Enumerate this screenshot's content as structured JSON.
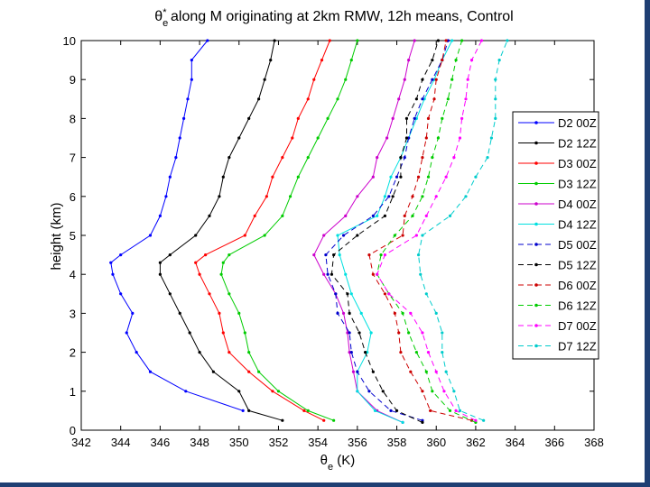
{
  "chart_data": {
    "type": "line",
    "title_prefix": "θ",
    "title_sub": "e",
    "title_sup": "*",
    "title_rest": " along M originating at 2km RMW, 12h means, Control",
    "xlabel_main": "θ",
    "xlabel_sub": "e",
    "xlabel_unit": " (K)",
    "ylabel": "height (km)",
    "xlim": [
      342,
      368
    ],
    "ylim": [
      0,
      10
    ],
    "xticks": [
      342,
      344,
      346,
      348,
      350,
      352,
      354,
      356,
      358,
      360,
      362,
      364,
      366,
      368
    ],
    "yticks": [
      0,
      1,
      2,
      3,
      4,
      5,
      6,
      7,
      8,
      9,
      10
    ],
    "grid": false,
    "legend_position": "right",
    "series": [
      {
        "name": "D2 00Z",
        "color": "#0000ff",
        "dash": false,
        "points": [
          [
            350.2,
            0.5
          ],
          [
            347.3,
            1
          ],
          [
            345.5,
            1.5
          ],
          [
            344.8,
            2
          ],
          [
            344.3,
            2.5
          ],
          [
            344.6,
            3
          ],
          [
            344.0,
            3.5
          ],
          [
            343.6,
            4
          ],
          [
            343.5,
            4.3
          ],
          [
            344.0,
            4.5
          ],
          [
            345.5,
            5
          ],
          [
            346.0,
            5.5
          ],
          [
            346.3,
            6
          ],
          [
            346.5,
            6.5
          ],
          [
            346.8,
            7
          ],
          [
            347.0,
            7.5
          ],
          [
            347.2,
            8
          ],
          [
            347.4,
            8.5
          ],
          [
            347.6,
            9
          ],
          [
            347.6,
            9.5
          ],
          [
            348.4,
            10
          ]
        ]
      },
      {
        "name": "D2 12Z",
        "color": "#000000",
        "dash": false,
        "points": [
          [
            352.2,
            0.25
          ],
          [
            350.5,
            0.5
          ],
          [
            350.0,
            1
          ],
          [
            348.7,
            1.5
          ],
          [
            348.0,
            2
          ],
          [
            347.5,
            2.5
          ],
          [
            347.0,
            3
          ],
          [
            346.5,
            3.5
          ],
          [
            346.0,
            4
          ],
          [
            346.0,
            4.3
          ],
          [
            346.5,
            4.5
          ],
          [
            347.8,
            5
          ],
          [
            348.5,
            5.5
          ],
          [
            349.0,
            6
          ],
          [
            349.2,
            6.5
          ],
          [
            349.5,
            7
          ],
          [
            350.0,
            7.5
          ],
          [
            350.5,
            8
          ],
          [
            351.0,
            8.5
          ],
          [
            351.3,
            9
          ],
          [
            351.6,
            9.5
          ],
          [
            351.8,
            10
          ]
        ]
      },
      {
        "name": "D3 00Z",
        "color": "#ff0000",
        "dash": false,
        "points": [
          [
            354.3,
            0.25
          ],
          [
            353.3,
            0.5
          ],
          [
            351.7,
            1
          ],
          [
            350.5,
            1.5
          ],
          [
            349.5,
            2
          ],
          [
            349.2,
            2.5
          ],
          [
            349.0,
            3
          ],
          [
            348.5,
            3.5
          ],
          [
            348.0,
            4
          ],
          [
            347.8,
            4.3
          ],
          [
            348.3,
            4.5
          ],
          [
            350.3,
            5
          ],
          [
            350.8,
            5.5
          ],
          [
            351.4,
            6
          ],
          [
            351.7,
            6.5
          ],
          [
            352.2,
            7
          ],
          [
            352.7,
            7.5
          ],
          [
            353.0,
            8
          ],
          [
            353.5,
            8.5
          ],
          [
            353.8,
            9
          ],
          [
            354.2,
            9.5
          ],
          [
            354.6,
            10
          ]
        ]
      },
      {
        "name": "D3 12Z",
        "color": "#00cc00",
        "dash": false,
        "points": [
          [
            354.8,
            0.25
          ],
          [
            353.5,
            0.5
          ],
          [
            352.0,
            1
          ],
          [
            351.0,
            1.5
          ],
          [
            350.5,
            2
          ],
          [
            350.3,
            2.5
          ],
          [
            350.0,
            3
          ],
          [
            349.5,
            3.5
          ],
          [
            349.1,
            4
          ],
          [
            349.2,
            4.3
          ],
          [
            349.5,
            4.5
          ],
          [
            351.3,
            5
          ],
          [
            352.2,
            5.5
          ],
          [
            352.6,
            6
          ],
          [
            353.0,
            6.5
          ],
          [
            353.5,
            7
          ],
          [
            354.0,
            7.5
          ],
          [
            354.5,
            8
          ],
          [
            355.0,
            8.5
          ],
          [
            355.4,
            9
          ],
          [
            355.7,
            9.5
          ],
          [
            356.0,
            10
          ]
        ]
      },
      {
        "name": "D4 00Z",
        "color": "#cc00cc",
        "dash": false,
        "points": [
          [
            358.3,
            0.2
          ],
          [
            357.0,
            0.5
          ],
          [
            356.0,
            1
          ],
          [
            355.8,
            1.5
          ],
          [
            355.6,
            2
          ],
          [
            355.5,
            2.5
          ],
          [
            355.3,
            3
          ],
          [
            354.9,
            3.5
          ],
          [
            354.3,
            4
          ],
          [
            353.8,
            4.5
          ],
          [
            354.3,
            5
          ],
          [
            355.4,
            5.5
          ],
          [
            356.0,
            6
          ],
          [
            356.8,
            6.5
          ],
          [
            357.0,
            7
          ],
          [
            357.5,
            7.5
          ],
          [
            357.8,
            8
          ],
          [
            358.1,
            8.5
          ],
          [
            358.4,
            9
          ],
          [
            358.6,
            9.5
          ],
          [
            358.9,
            10
          ]
        ]
      },
      {
        "name": "D4 12Z",
        "color": "#00e0e0",
        "dash": false,
        "points": [
          [
            358.3,
            0.2
          ],
          [
            356.9,
            0.5
          ],
          [
            356.0,
            1
          ],
          [
            356.0,
            1.5
          ],
          [
            356.5,
            2
          ],
          [
            356.7,
            2.5
          ],
          [
            356.2,
            3
          ],
          [
            355.7,
            3.5
          ],
          [
            355.4,
            4
          ],
          [
            355.1,
            4.5
          ],
          [
            355.0,
            5
          ],
          [
            357.0,
            5.5
          ],
          [
            357.4,
            6
          ],
          [
            357.7,
            6.5
          ],
          [
            358.2,
            7
          ],
          [
            358.6,
            7.5
          ],
          [
            359.0,
            8
          ],
          [
            359.4,
            8.5
          ],
          [
            359.9,
            9
          ],
          [
            360.3,
            9.5
          ],
          [
            360.8,
            10
          ]
        ]
      },
      {
        "name": "D5 00Z",
        "color": "#0000cc",
        "dash": true,
        "points": [
          [
            359.3,
            0.25
          ],
          [
            357.7,
            0.5
          ],
          [
            356.6,
            1
          ],
          [
            356.0,
            1.5
          ],
          [
            355.7,
            2
          ],
          [
            355.6,
            2.5
          ],
          [
            355.0,
            3
          ],
          [
            354.9,
            3.5
          ],
          [
            354.5,
            4
          ],
          [
            354.4,
            4.5
          ],
          [
            355.3,
            5
          ],
          [
            356.8,
            5.5
          ],
          [
            357.6,
            6
          ],
          [
            358.0,
            6.5
          ],
          [
            358.4,
            7
          ],
          [
            358.6,
            7.5
          ],
          [
            358.9,
            8
          ],
          [
            359.3,
            8.5
          ],
          [
            359.8,
            9
          ],
          [
            360.3,
            9.5
          ],
          [
            360.6,
            10
          ]
        ]
      },
      {
        "name": "D5 12Z",
        "color": "#000000",
        "dash": true,
        "points": [
          [
            359.3,
            0.2
          ],
          [
            358.0,
            0.5
          ],
          [
            357.3,
            1
          ],
          [
            356.8,
            1.5
          ],
          [
            356.4,
            2
          ],
          [
            356.1,
            2.5
          ],
          [
            355.6,
            3
          ],
          [
            355.5,
            3.5
          ],
          [
            354.7,
            4
          ],
          [
            354.8,
            4.5
          ],
          [
            356.0,
            5
          ],
          [
            357.4,
            5.5
          ],
          [
            357.8,
            6
          ],
          [
            358.2,
            6.5
          ],
          [
            358.2,
            7
          ],
          [
            358.5,
            7.5
          ],
          [
            358.5,
            8
          ],
          [
            359.0,
            8.5
          ],
          [
            359.3,
            9
          ],
          [
            359.8,
            9.5
          ],
          [
            360.1,
            10
          ]
        ]
      },
      {
        "name": "D6 00Z",
        "color": "#cc0000",
        "dash": true,
        "points": [
          [
            361.8,
            0.25
          ],
          [
            359.7,
            0.5
          ],
          [
            359.3,
            1
          ],
          [
            358.7,
            1.5
          ],
          [
            358.2,
            2
          ],
          [
            358.1,
            2.5
          ],
          [
            357.9,
            3
          ],
          [
            357.4,
            3.5
          ],
          [
            356.8,
            4
          ],
          [
            356.6,
            4.5
          ],
          [
            358.3,
            5
          ],
          [
            358.4,
            5.5
          ],
          [
            358.8,
            6
          ],
          [
            359.1,
            6.5
          ],
          [
            359.3,
            7
          ],
          [
            359.5,
            7.5
          ],
          [
            359.6,
            8
          ],
          [
            359.9,
            8.5
          ],
          [
            360.0,
            9
          ],
          [
            360.3,
            9.5
          ],
          [
            360.5,
            10
          ]
        ]
      },
      {
        "name": "D6 12Z",
        "color": "#00cc00",
        "dash": true,
        "points": [
          [
            362.0,
            0.2
          ],
          [
            360.7,
            0.5
          ],
          [
            359.8,
            1
          ],
          [
            359.5,
            1.5
          ],
          [
            359.0,
            2
          ],
          [
            358.6,
            2.5
          ],
          [
            358.3,
            3
          ],
          [
            357.6,
            3.5
          ],
          [
            357.0,
            4
          ],
          [
            357.2,
            4.5
          ],
          [
            357.9,
            5
          ],
          [
            358.8,
            5.5
          ],
          [
            359.3,
            6
          ],
          [
            359.6,
            6.5
          ],
          [
            359.8,
            7
          ],
          [
            360.1,
            7.5
          ],
          [
            360.3,
            8
          ],
          [
            360.6,
            8.5
          ],
          [
            360.8,
            9
          ],
          [
            361.0,
            9.5
          ],
          [
            361.3,
            10
          ]
        ]
      },
      {
        "name": "D7 00Z",
        "color": "#ff00ff",
        "dash": true,
        "points": [
          [
            362.0,
            0.25
          ],
          [
            361.0,
            0.5
          ],
          [
            360.4,
            1
          ],
          [
            360.0,
            1.5
          ],
          [
            359.6,
            2
          ],
          [
            359.3,
            2.5
          ],
          [
            358.7,
            3
          ],
          [
            357.6,
            3.5
          ],
          [
            357.0,
            4
          ],
          [
            357.4,
            4.5
          ],
          [
            359.0,
            5
          ],
          [
            359.5,
            5.5
          ],
          [
            360.0,
            6
          ],
          [
            360.5,
            6.5
          ],
          [
            360.9,
            7
          ],
          [
            361.2,
            7.5
          ],
          [
            361.3,
            8
          ],
          [
            361.5,
            8.5
          ],
          [
            361.6,
            9
          ],
          [
            361.8,
            9.5
          ],
          [
            362.3,
            10
          ]
        ]
      },
      {
        "name": "D7 12Z",
        "color": "#00cccc",
        "dash": true,
        "points": [
          [
            362.4,
            0.25
          ],
          [
            361.2,
            0.5
          ],
          [
            360.9,
            1
          ],
          [
            360.5,
            1.5
          ],
          [
            360.3,
            2
          ],
          [
            360.3,
            2.5
          ],
          [
            360.0,
            3
          ],
          [
            359.5,
            3.5
          ],
          [
            359.2,
            4
          ],
          [
            359.1,
            4.5
          ],
          [
            359.3,
            5
          ],
          [
            360.7,
            5.5
          ],
          [
            361.5,
            6
          ],
          [
            362.0,
            6.5
          ],
          [
            362.6,
            7
          ],
          [
            362.8,
            7.5
          ],
          [
            363.0,
            8
          ],
          [
            363.0,
            8.5
          ],
          [
            363.0,
            9
          ],
          [
            363.2,
            9.5
          ],
          [
            363.6,
            10
          ]
        ]
      }
    ]
  }
}
